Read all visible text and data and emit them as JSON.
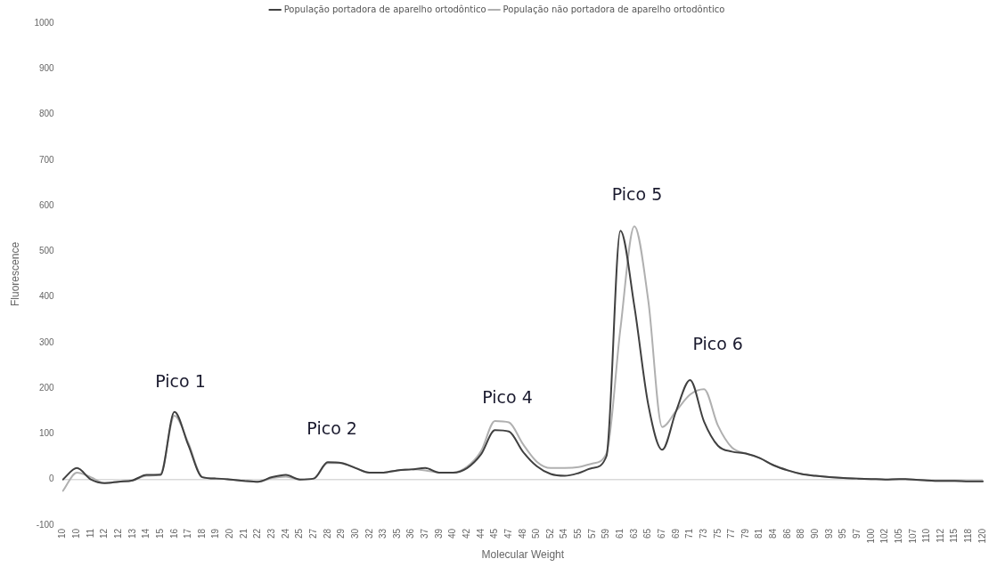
{
  "chart_data": {
    "type": "line",
    "xlabel": "Molecular Weight",
    "ylabel": "Fluorescence",
    "categories": [
      "10",
      "10",
      "11",
      "12",
      "12",
      "13",
      "14",
      "15",
      "16",
      "17",
      "18",
      "19",
      "20",
      "21",
      "22",
      "23",
      "24",
      "25",
      "27",
      "28",
      "29",
      "30",
      "32",
      "33",
      "35",
      "36",
      "37",
      "39",
      "40",
      "42",
      "44",
      "45",
      "47",
      "48",
      "50",
      "52",
      "54",
      "55",
      "57",
      "59",
      "61",
      "63",
      "65",
      "67",
      "69",
      "71",
      "73",
      "75",
      "77",
      "79",
      "81",
      "84",
      "86",
      "88",
      "90",
      "93",
      "95",
      "97",
      "100",
      "102",
      "105",
      "107",
      "110",
      "112",
      "115",
      "118",
      "120"
    ],
    "series": [
      {
        "name": "População portadora de aparelho ortodôntico",
        "color": "#404040",
        "values": [
          0,
          25,
          0,
          -8,
          -5,
          -2,
          10,
          10,
          148,
          75,
          5,
          2,
          0,
          -3,
          -5,
          5,
          10,
          0,
          2,
          38,
          36,
          25,
          15,
          15,
          20,
          22,
          25,
          15,
          15,
          25,
          55,
          108,
          105,
          61,
          29,
          12,
          8,
          14,
          25,
          51,
          545,
          380,
          164,
          65,
          150,
          218,
          127,
          74,
          61,
          57,
          47,
          31,
          20,
          12,
          8,
          5,
          3,
          2,
          1,
          0,
          1,
          0,
          -2,
          -3,
          -3,
          -4,
          -4
        ]
      },
      {
        "name": "População não portadora de aparelho ortodôntico",
        "color": "#b0b0b0",
        "values": [
          -25,
          15,
          5,
          -8,
          -5,
          -2,
          8,
          12,
          140,
          80,
          5,
          2,
          0,
          -3,
          -5,
          3,
          6,
          0,
          2,
          36,
          36,
          25,
          15,
          15,
          20,
          22,
          20,
          15,
          15,
          28,
          62,
          128,
          125,
          78,
          39,
          25,
          25,
          27,
          35,
          57,
          330,
          555,
          392,
          115,
          150,
          186,
          198,
          118,
          70,
          57,
          47,
          31,
          20,
          12,
          8,
          5,
          3,
          2,
          1,
          0,
          1,
          0,
          -2,
          -3,
          -3,
          -4,
          -4
        ]
      }
    ],
    "ylim": [
      -100,
      1000
    ],
    "yticks": [
      -100,
      0,
      100,
      200,
      300,
      400,
      500,
      600,
      700,
      800,
      900,
      1000
    ],
    "grid": false,
    "legend": "top",
    "marker": "none",
    "line_style": "solid",
    "ref_lines": [
      {
        "axis": "y",
        "value": 0,
        "color": "#d9d9d9"
      }
    ],
    "annotations": [
      "Pico 1",
      "Pico 2",
      "Pico 4",
      "Pico 5",
      "Pico 6"
    ]
  }
}
